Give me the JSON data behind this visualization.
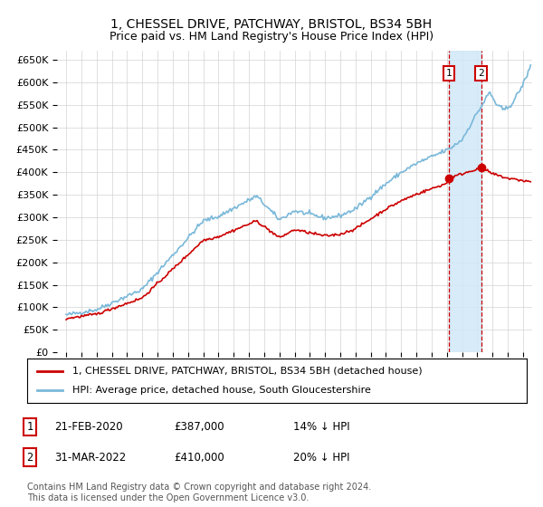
{
  "title": "1, CHESSEL DRIVE, PATCHWAY, BRISTOL, BS34 5BH",
  "subtitle": "Price paid vs. HM Land Registry's House Price Index (HPI)",
  "ylabel_ticks": [
    "£0",
    "£50K",
    "£100K",
    "£150K",
    "£200K",
    "£250K",
    "£300K",
    "£350K",
    "£400K",
    "£450K",
    "£500K",
    "£550K",
    "£600K",
    "£650K"
  ],
  "ytick_values": [
    0,
    50000,
    100000,
    150000,
    200000,
    250000,
    300000,
    350000,
    400000,
    450000,
    500000,
    550000,
    600000,
    650000
  ],
  "hpi_color": "#7ab8d9",
  "price_color": "#cc0000",
  "marker_color": "#cc0000",
  "dashed_line_color": "#cc0000",
  "shade_color": "#d0e8f8",
  "legend_label_price": "1, CHESSEL DRIVE, PATCHWAY, BRISTOL, BS34 5BH (detached house)",
  "legend_label_hpi": "HPI: Average price, detached house, South Gloucestershire",
  "sale1_label": "1",
  "sale1_date": "21-FEB-2020",
  "sale1_price": "£387,000",
  "sale1_note": "14% ↓ HPI",
  "sale2_label": "2",
  "sale2_date": "31-MAR-2022",
  "sale2_price": "£410,000",
  "sale2_note": "20% ↓ HPI",
  "footnote": "Contains HM Land Registry data © Crown copyright and database right 2024.\nThis data is licensed under the Open Government Licence v3.0.",
  "sale1_year": 2020.13,
  "sale2_year": 2022.25,
  "sale1_value": 387000,
  "sale2_value": 410000,
  "ylim_max": 670000,
  "xlim_min": 1994.4,
  "xlim_max": 2025.6
}
